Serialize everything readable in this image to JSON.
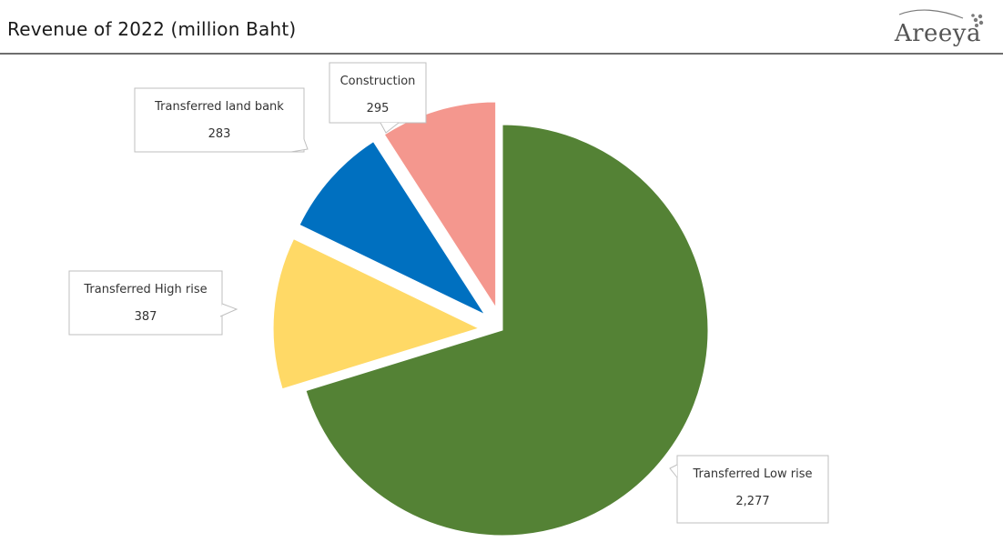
{
  "header": {
    "title": "Revenue of 2022 (million Baht)",
    "logo_text": "Areeya"
  },
  "chart_data": {
    "type": "pie",
    "title": "Revenue of 2022 (million Baht)",
    "slices": [
      {
        "label": "Transferred Low rise",
        "value": 2277,
        "display": "2,277",
        "color": "#548235",
        "exploded": false
      },
      {
        "label": "Transferred High rise",
        "value": 387,
        "display": "387",
        "color": "#FFD966",
        "exploded": true
      },
      {
        "label": "Transferred land bank",
        "value": 283,
        "display": "283",
        "color": "#0070C0",
        "exploded": true
      },
      {
        "label": "Construction",
        "value": 295,
        "display": "295",
        "color": "#F4978E",
        "exploded": true
      }
    ],
    "legend": "none",
    "data_labels": "callouts"
  },
  "colors": {
    "callout_border": "#bfbfbf",
    "rule": "#6e6e6e"
  }
}
